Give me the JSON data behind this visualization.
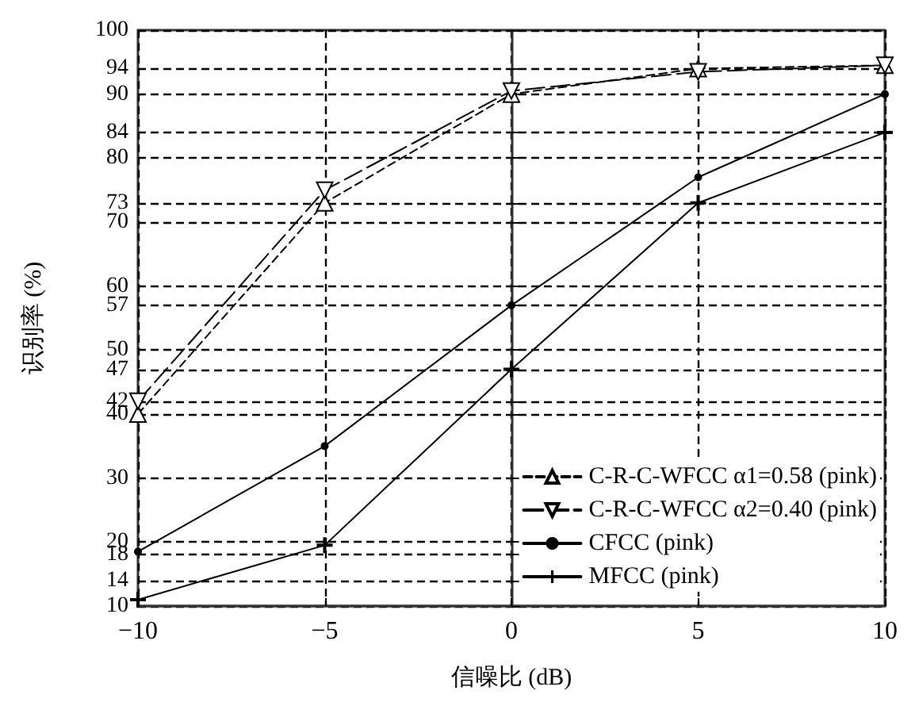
{
  "chart_data": {
    "type": "line",
    "xlabel": "信噪比 (dB)",
    "ylabel": "识别率 (%)",
    "x": [
      -10,
      -5,
      0,
      5,
      10
    ],
    "series": [
      {
        "name": "C-R-C-WFCC α1=0.58 (pink)",
        "color": "#000000",
        "marker": "triangle",
        "line_style": "dashed",
        "values": [
          40,
          73,
          90,
          94,
          94.5
        ]
      },
      {
        "name": "C-R-C-WFCC α2=0.40 (pink)",
        "color": "#000000",
        "marker": "triangle-down",
        "line_style": "long-dashed",
        "values": [
          42,
          75,
          90.5,
          93.5,
          94.5
        ]
      },
      {
        "name": "CFCC (pink)",
        "color": "#000000",
        "marker": "circle",
        "line_style": "solid",
        "values": [
          18.5,
          35,
          57,
          77,
          90
        ]
      },
      {
        "name": "MFCC (pink)",
        "color": "#000000",
        "marker": "cross",
        "line_style": "solid",
        "values": [
          11,
          19.5,
          47,
          73,
          84
        ]
      }
    ],
    "xlim": [
      -10,
      10
    ],
    "xticks": [
      -10,
      -5,
      0,
      5,
      10
    ],
    "ylim": [
      10,
      100
    ],
    "yticks": [
      10,
      14,
      18,
      20,
      30,
      40,
      42,
      47,
      50,
      57,
      60,
      70,
      73,
      80,
      84,
      90,
      94,
      100
    ],
    "grid": true,
    "legend": "bottom right"
  }
}
